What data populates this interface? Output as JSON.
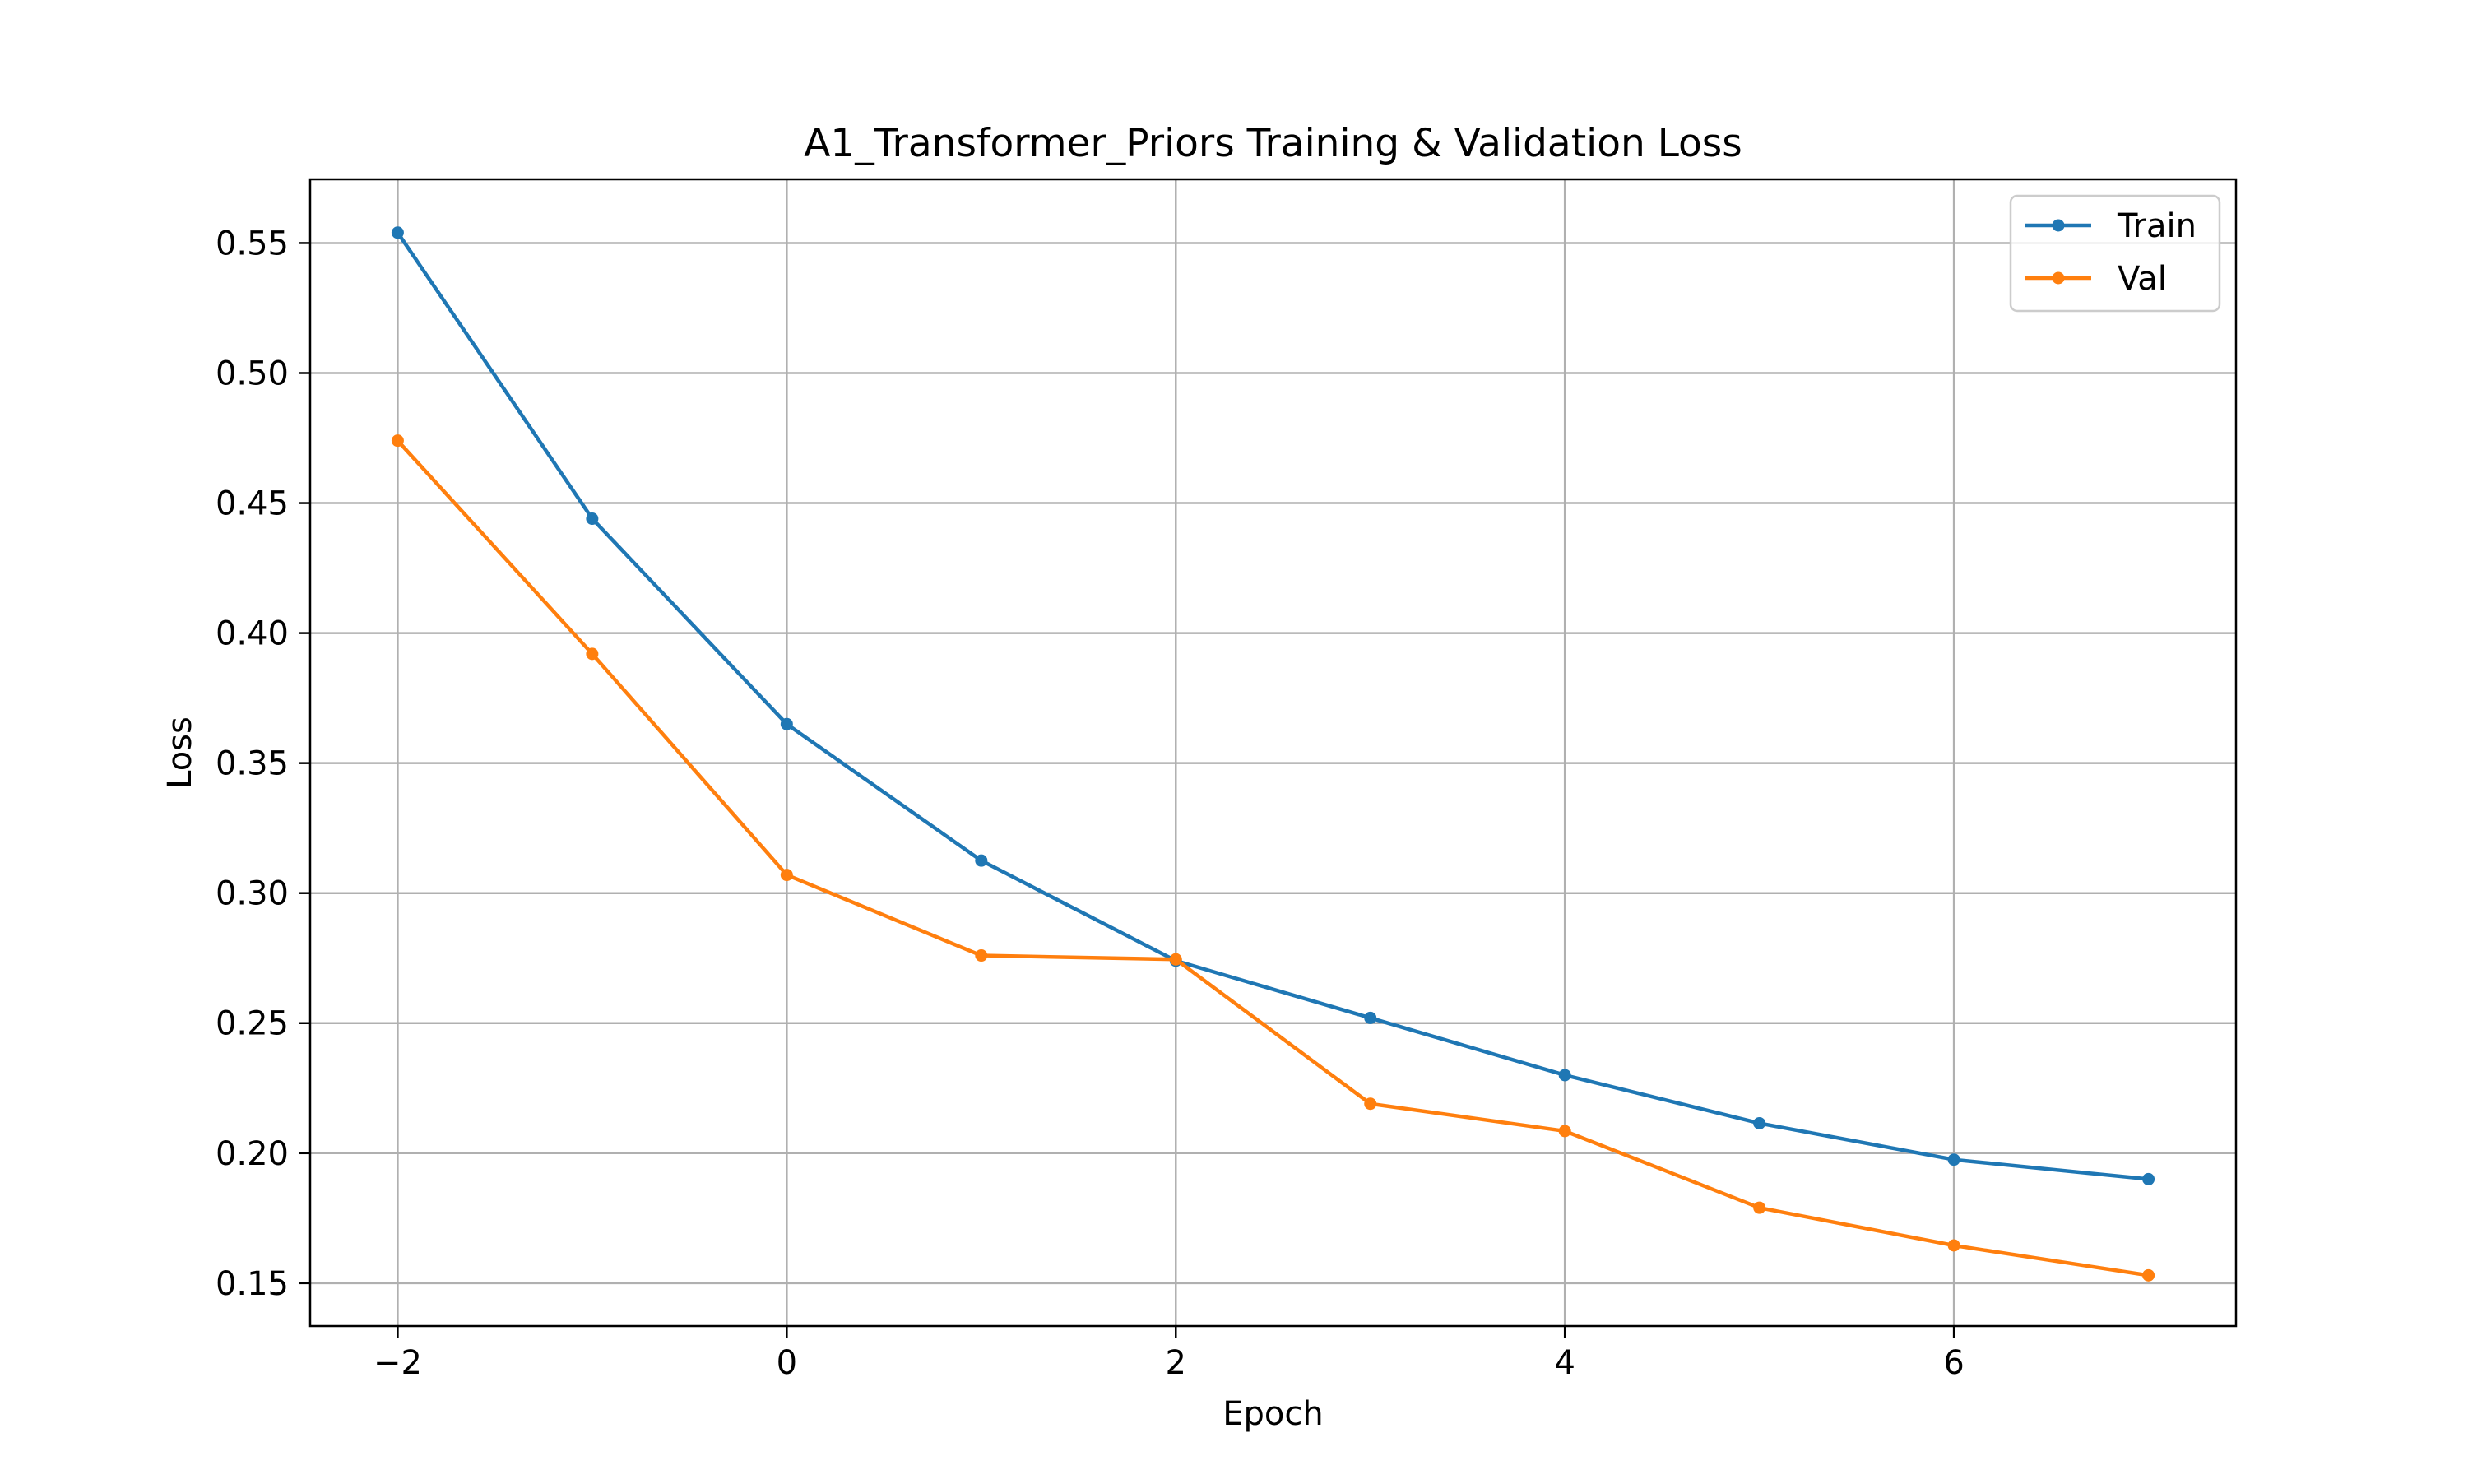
{
  "chart_data": {
    "type": "line",
    "title": "A1_Transformer_Priors Training & Validation Loss",
    "xlabel": "Epoch",
    "ylabel": "Loss",
    "x": [
      -2,
      -1,
      0,
      1,
      2,
      3,
      4,
      5,
      6,
      7
    ],
    "xlim": [
      -2.45,
      7.45
    ],
    "ylim": [
      0.1335,
      0.5745
    ],
    "xticks": [
      -2,
      0,
      2,
      4,
      6
    ],
    "xtick_labels": [
      "−2",
      "0",
      "2",
      "4",
      "6"
    ],
    "yticks": [
      0.15,
      0.2,
      0.25,
      0.3,
      0.35,
      0.4,
      0.45,
      0.5,
      0.55
    ],
    "ytick_labels": [
      "0.15",
      "0.20",
      "0.25",
      "0.30",
      "0.35",
      "0.40",
      "0.45",
      "0.50",
      "0.55"
    ],
    "grid": true,
    "legend_position": "top-right",
    "series": [
      {
        "name": "Train",
        "color": "#1f77b4",
        "values": [
          0.554,
          0.444,
          0.365,
          0.3125,
          0.274,
          0.252,
          0.23,
          0.2115,
          0.1975,
          0.19
        ]
      },
      {
        "name": "Val",
        "color": "#ff7f0e",
        "values": [
          0.474,
          0.392,
          0.307,
          0.276,
          0.2745,
          0.219,
          0.2085,
          0.179,
          0.1645,
          0.153
        ]
      }
    ]
  }
}
